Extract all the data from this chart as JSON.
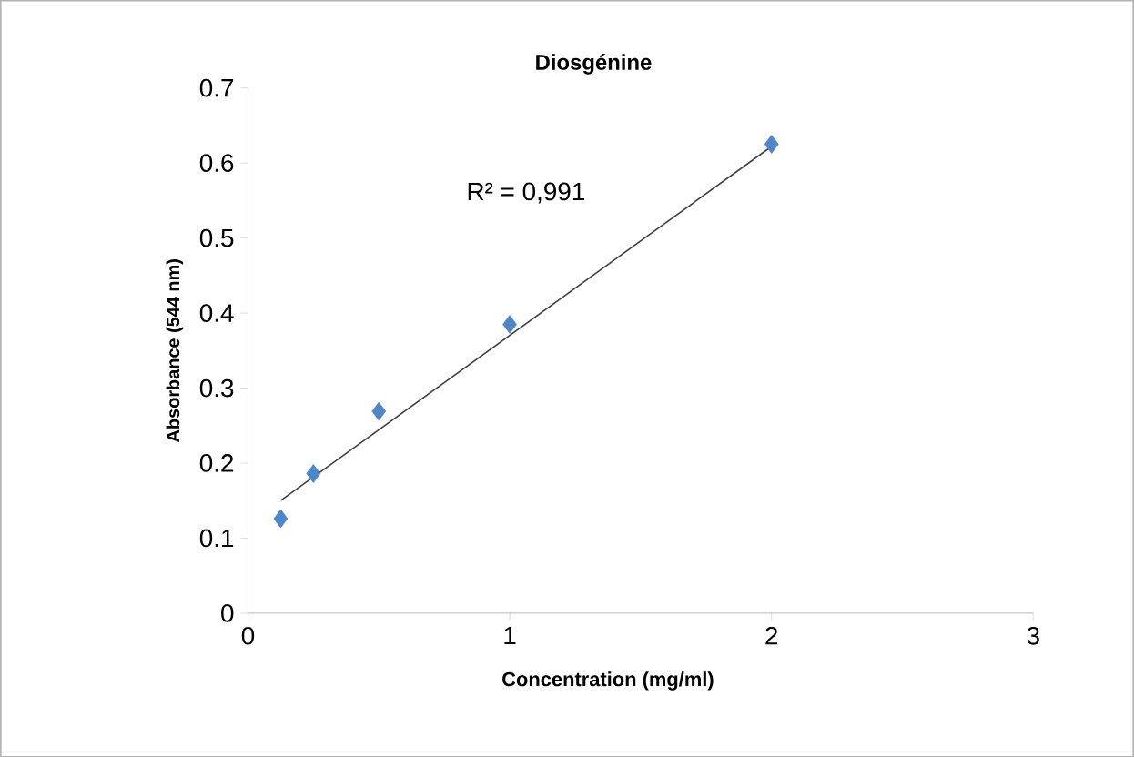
{
  "chart_data": {
    "type": "scatter",
    "title": "Diosgénine",
    "xlabel": "Concentration (mg/ml)",
    "ylabel": "Absorbance (544 nm)",
    "series": [
      {
        "color": "#4f86c6",
        "marker": "diamond",
        "x": [
          0.125,
          0.25,
          0.5,
          1,
          2
        ],
        "values": [
          0.126,
          0.186,
          0.269,
          0.385,
          0.625
        ]
      },
      {
        "type": "line",
        "color": "#404040",
        "marker": "none",
        "x": [
          0.125,
          2
        ],
        "values": [
          0.15,
          0.622
        ]
      }
    ],
    "annotations": [
      "R² = 0,991"
    ],
    "xlim": [
      0,
      3
    ],
    "xticks": [
      0,
      1,
      2,
      3
    ],
    "ylim": [
      0,
      0.7
    ],
    "yticks": [
      0,
      0.1,
      0.2,
      0.3,
      0.4,
      0.5,
      0.6,
      0.7
    ],
    "grid": false
  }
}
